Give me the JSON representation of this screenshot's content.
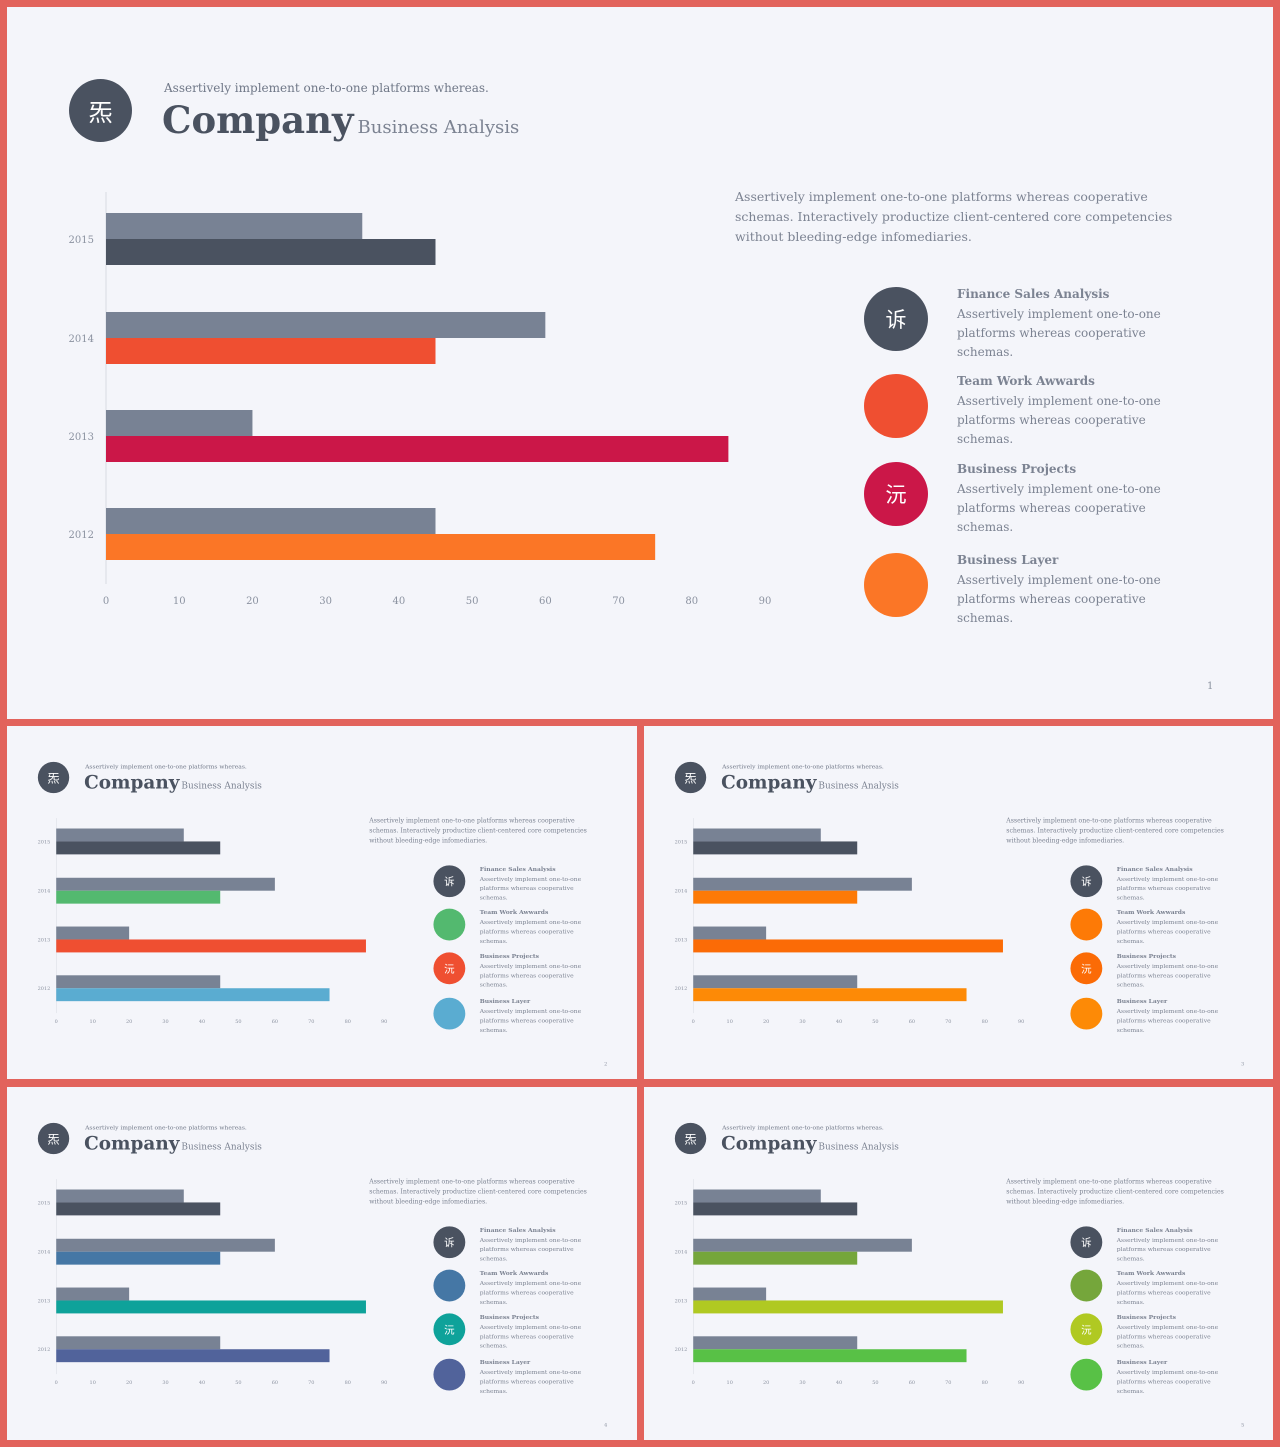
{
  "common": {
    "logo_char": "炁",
    "tagline": "Assertively implement one-to-one platforms whereas.",
    "title": "Company",
    "subtitle": "Business Analysis",
    "description": "Assertively implement one-to-one platforms whereas cooperative schemas. Interactively productize client-centered core competencies without bleeding-edge infomediaries.",
    "legend": [
      {
        "title": "Finance Sales Analysis",
        "text": "Assertively implement one-to-one platforms whereas cooperative schemas.",
        "icon_char": "诉"
      },
      {
        "title": "Team Work Awwards",
        "text": "Assertively implement one-to-one platforms whereas cooperative schemas.",
        "icon_char": ""
      },
      {
        "title": "Business Projects",
        "text": "Assertively implement one-to-one platforms whereas cooperative schemas.",
        "icon_char": "沅"
      },
      {
        "title": "Business Layer",
        "text": "Assertively implement one-to-one platforms whereas cooperative schemas.",
        "icon_char": ""
      }
    ],
    "colors": {
      "background": "#f4f5fa",
      "dark": "#4a5260",
      "gray_bar": "#788294",
      "frame": "#e2635c"
    }
  },
  "chart_data": {
    "type": "bar",
    "orientation": "horizontal",
    "categories": [
      "2015",
      "2014",
      "2013",
      "2012"
    ],
    "series": [
      {
        "values": [
          35,
          60,
          20,
          45
        ]
      },
      {
        "values": [
          45,
          45,
          85,
          75
        ]
      }
    ],
    "xlim": [
      0,
      90
    ],
    "xticks": [
      0,
      10,
      20,
      30,
      40,
      50,
      60,
      70,
      80,
      90
    ]
  },
  "slides": [
    {
      "id": "main",
      "page": "1",
      "color_scheme": [
        "#4a5260",
        "#ef4f31",
        "#cb1748",
        "#fb7626"
      ]
    },
    {
      "id": "1",
      "page": "2",
      "color_scheme": [
        "#4a5260",
        "#53b96f",
        "#ef4f31",
        "#5aacd1"
      ]
    },
    {
      "id": "2",
      "page": "3",
      "color_scheme": [
        "#4a5260",
        "#fd7a06",
        "#fb6b06",
        "#fd8a06"
      ]
    },
    {
      "id": "3",
      "page": "4",
      "color_scheme": [
        "#4a5260",
        "#4577a5",
        "#0ea29a",
        "#51639b"
      ]
    },
    {
      "id": "4",
      "page": "5",
      "color_scheme": [
        "#4a5260",
        "#75a63b",
        "#b0c922",
        "#58c146"
      ]
    }
  ]
}
